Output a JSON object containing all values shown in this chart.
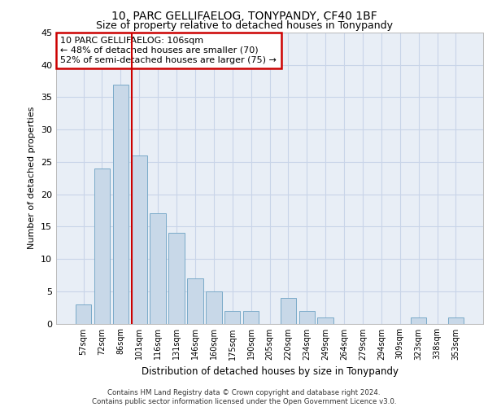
{
  "title1": "10, PARC GELLIFAELOG, TONYPANDY, CF40 1BF",
  "title2": "Size of property relative to detached houses in Tonypandy",
  "xlabel": "Distribution of detached houses by size in Tonypandy",
  "ylabel": "Number of detached properties",
  "categories": [
    "57sqm",
    "72sqm",
    "86sqm",
    "101sqm",
    "116sqm",
    "131sqm",
    "146sqm",
    "160sqm",
    "175sqm",
    "190sqm",
    "205sqm",
    "220sqm",
    "234sqm",
    "249sqm",
    "264sqm",
    "279sqm",
    "294sqm",
    "309sqm",
    "323sqm",
    "338sqm",
    "353sqm"
  ],
  "values": [
    3,
    24,
    37,
    26,
    17,
    14,
    7,
    5,
    2,
    2,
    0,
    4,
    2,
    1,
    0,
    0,
    0,
    0,
    1,
    0,
    1
  ],
  "bar_color": "#c8d8e8",
  "bar_edge_color": "#7aaac8",
  "vline_color": "#cc0000",
  "annotation_text": "10 PARC GELLIFAELOG: 106sqm\n← 48% of detached houses are smaller (70)\n52% of semi-detached houses are larger (75) →",
  "annotation_box_color": "#cc0000",
  "ylim": [
    0,
    45
  ],
  "yticks": [
    0,
    5,
    10,
    15,
    20,
    25,
    30,
    35,
    40,
    45
  ],
  "grid_color": "#c8d4e8",
  "background_color": "#e8eef6",
  "footer_line1": "Contains HM Land Registry data © Crown copyright and database right 2024.",
  "footer_line2": "Contains public sector information licensed under the Open Government Licence v3.0."
}
